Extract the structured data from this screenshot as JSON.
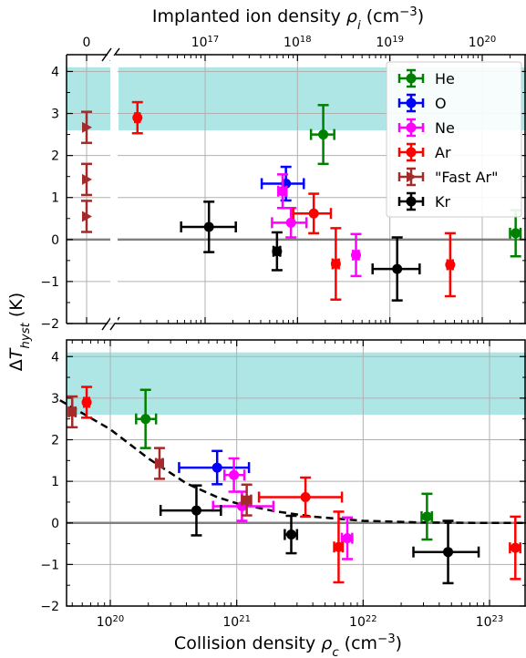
{
  "chart_data": [
    {
      "type": "scatter",
      "panel": "top",
      "x_scale": "log with broken axis at zero",
      "xlabel": "Implanted ion density ρ_i (cm⁻³)",
      "xtick_labels": [
        {
          "value": 0,
          "label": "0"
        },
        {
          "value": 1e+17,
          "label": "10^17"
        },
        {
          "value": 1e+18,
          "label": "10^18"
        },
        {
          "value": 1e+19,
          "label": "10^19"
        },
        {
          "value": 1e+20,
          "label": "10^20"
        }
      ],
      "ylim": [
        -2,
        4.4
      ],
      "ytick_labels": [
        "−2",
        "−1",
        "0",
        "1",
        "2",
        "3",
        "4"
      ],
      "shaded_band": {
        "y_from": 2.6,
        "y_to": 4.1,
        "color": "#aee6e6"
      },
      "reference_line_y": 0,
      "grid": true,
      "legend_position": "top-right",
      "series": [
        {
          "name": "He",
          "color": "#008000",
          "marker": "circle",
          "points": [
            {
              "x": 1.9e+18,
              "y": 2.5,
              "xerr": [
                5e+17,
                6e+17
              ],
              "yerr": 0.7
            },
            {
              "x": 2.3e+20,
              "y": 0.15,
              "xerr": [
                3e+19,
                3e+19
              ],
              "yerr": 0.55
            }
          ]
        },
        {
          "name": "O",
          "color": "#0000ff",
          "marker": "circle",
          "points": [
            {
              "x": 7.5e+17,
              "y": 1.33,
              "xerr": [
                3.4e+17,
                4.2e+17
              ],
              "yerr": 0.4
            }
          ]
        },
        {
          "name": "Ne",
          "color": "#ff00ff",
          "marker": "circle",
          "points": [
            {
              "x": 6.9e+17,
              "y": 1.15,
              "xerr": [
                7e+16,
                7e+16
              ],
              "yerr": 0.4
            },
            {
              "x": 8.5e+17,
              "y": 0.4,
              "xerr": [
                3.2e+17,
                4e+17
              ],
              "yerr": 0.35
            },
            {
              "x": 4.3e+18,
              "y": -0.37,
              "xerr": [
                3e+17,
                3e+17
              ],
              "yerr": 0.5
            }
          ]
        },
        {
          "name": "Ar",
          "color": "#ff0000",
          "marker": "circle",
          "points": [
            {
              "x": 1.85e+16,
              "y": 2.9,
              "xerr": [
                1000000000000000.0,
                1000000000000000.0
              ],
              "yerr": 0.37
            },
            {
              "x": 1.5e+18,
              "y": 0.62,
              "xerr": [
                6e+17,
                8e+17
              ],
              "yerr": 0.47
            },
            {
              "x": 2.6e+18,
              "y": -0.58,
              "xerr": [
                2e+17,
                2e+17
              ],
              "yerr": 0.85
            },
            {
              "x": 4.5e+19,
              "y": -0.6,
              "xerr": [
                3e+18,
                3e+18
              ],
              "yerr": 0.75
            }
          ]
        },
        {
          "name": "\"Fast Ar\"",
          "color": "#a52a2a",
          "marker": "triangle-right",
          "points": [
            {
              "x": 0,
              "y": 2.67,
              "yerr": 0.37
            },
            {
              "x": 0,
              "y": 1.43,
              "yerr": 0.37
            },
            {
              "x": 0,
              "y": 0.55,
              "yerr": 0.37
            }
          ]
        },
        {
          "name": "Kr",
          "color": "#000000",
          "marker": "circle",
          "points": [
            {
              "x": 1.1e+17,
              "y": 0.3,
              "xerr": [
                5.5e+16,
                1.05e+17
              ],
              "yerr": 0.6
            },
            {
              "x": 6e+17,
              "y": -0.28,
              "xerr": [
                5e+16,
                5e+16
              ],
              "yerr": 0.45
            },
            {
              "x": 1.2e+19,
              "y": -0.7,
              "xerr": [
                5.5e+18,
                9e+18
              ],
              "yerr": 0.75
            }
          ]
        }
      ]
    },
    {
      "type": "scatter",
      "panel": "bottom",
      "x_scale": "log",
      "xlabel": "Collision density ρ_c (cm⁻³)",
      "xlim": [
        4e+19,
        2e+23
      ],
      "xtick_labels": [
        {
          "value": 1e+20,
          "label": "10^20"
        },
        {
          "value": 1e+21,
          "label": "10^21"
        },
        {
          "value": 1e+22,
          "label": "10^22"
        },
        {
          "value": 1e+23,
          "label": "10^23"
        }
      ],
      "ylabel": "ΔT_hyst (K)",
      "ylim": [
        -2,
        4.4
      ],
      "ytick_labels": [
        "−2",
        "−1",
        "0",
        "1",
        "2",
        "3",
        "4"
      ],
      "shaded_band": {
        "y_from": 2.6,
        "y_to": 4.1,
        "color": "#aee6e6"
      },
      "reference_line_y": 0,
      "grid": true,
      "fit_curve": {
        "style": "dashed",
        "color": "#000000",
        "points": [
          [
            4e+19,
            2.95
          ],
          [
            1e+20,
            2.25
          ],
          [
            2e+20,
            1.55
          ],
          [
            4e+20,
            0.95
          ],
          [
            7e+20,
            0.62
          ],
          [
            1e+21,
            0.47
          ],
          [
            2e+21,
            0.28
          ],
          [
            4e+21,
            0.15
          ],
          [
            1e+22,
            0.05
          ],
          [
            3e+22,
            0.01
          ],
          [
            1e+23,
            0.0
          ],
          [
            2e+23,
            0.0
          ]
        ]
      },
      "series": [
        {
          "name": "He",
          "color": "#008000",
          "marker": "circle",
          "points": [
            {
              "x": 1.9e+20,
              "y": 2.5,
              "xerr": [
                3e+19,
                4e+19
              ],
              "yerr": 0.7
            },
            {
              "x": 3.2e+22,
              "y": 0.15,
              "xerr": [
                3e+21,
                3e+21
              ],
              "yerr": 0.55
            }
          ]
        },
        {
          "name": "O",
          "color": "#0000ff",
          "marker": "circle",
          "points": [
            {
              "x": 7e+20,
              "y": 1.33,
              "xerr": [
                3.5e+20,
                5.5e+20
              ],
              "yerr": 0.4
            }
          ]
        },
        {
          "name": "Ne",
          "color": "#ff00ff",
          "marker": "circle",
          "points": [
            {
              "x": 9.5e+20,
              "y": 1.15,
              "xerr": [
                1.5e+20,
                2e+20
              ],
              "yerr": 0.4
            },
            {
              "x": 1.1e+21,
              "y": 0.4,
              "xerr": [
                4.5e+20,
                8.5e+20
              ],
              "yerr": 0.35
            },
            {
              "x": 7.5e+21,
              "y": -0.37,
              "xerr": [
                7e+20,
                7e+20
              ],
              "yerr": 0.5
            }
          ]
        },
        {
          "name": "Ar",
          "color": "#ff0000",
          "marker": "circle",
          "points": [
            {
              "x": 6.5e+19,
              "y": 2.9,
              "xerr": [
                3e+18,
                3e+18
              ],
              "yerr": 0.37
            },
            {
              "x": 3.5e+21,
              "y": 0.62,
              "xerr": [
                2e+21,
                3.3e+21
              ],
              "yerr": 0.47
            },
            {
              "x": 6.4e+21,
              "y": -0.58,
              "xerr": [
                5e+20,
                5e+20
              ],
              "yerr": 0.85
            },
            {
              "x": 1.6e+23,
              "y": -0.6,
              "xerr": [
                1.5e+22,
                1.5e+22
              ],
              "yerr": 0.75
            }
          ]
        },
        {
          "name": "\"Fast Ar\"",
          "color": "#a52a2a",
          "marker": "square",
          "points": [
            {
              "x": 5e+19,
              "y": 2.67,
              "xerr": [
                3e+18,
                3e+18
              ],
              "yerr": 0.37
            },
            {
              "x": 2.45e+20,
              "y": 1.43,
              "xerr": [
                1.5e+19,
                1.5e+19
              ],
              "yerr": 0.37
            },
            {
              "x": 1.2e+21,
              "y": 0.55,
              "xerr": [
                1e+20,
                1e+20
              ],
              "yerr": 0.37
            }
          ]
        },
        {
          "name": "Kr",
          "color": "#000000",
          "marker": "circle",
          "points": [
            {
              "x": 4.8e+20,
              "y": 0.3,
              "xerr": [
                2.3e+20,
                2.7e+20
              ],
              "yerr": 0.6
            },
            {
              "x": 2.7e+21,
              "y": -0.28,
              "xerr": [
                3e+20,
                3e+20
              ],
              "yerr": 0.45
            },
            {
              "x": 4.7e+22,
              "y": -0.7,
              "xerr": [
                2.2e+22,
                3.5e+22
              ],
              "yerr": 0.75
            }
          ]
        }
      ]
    }
  ]
}
